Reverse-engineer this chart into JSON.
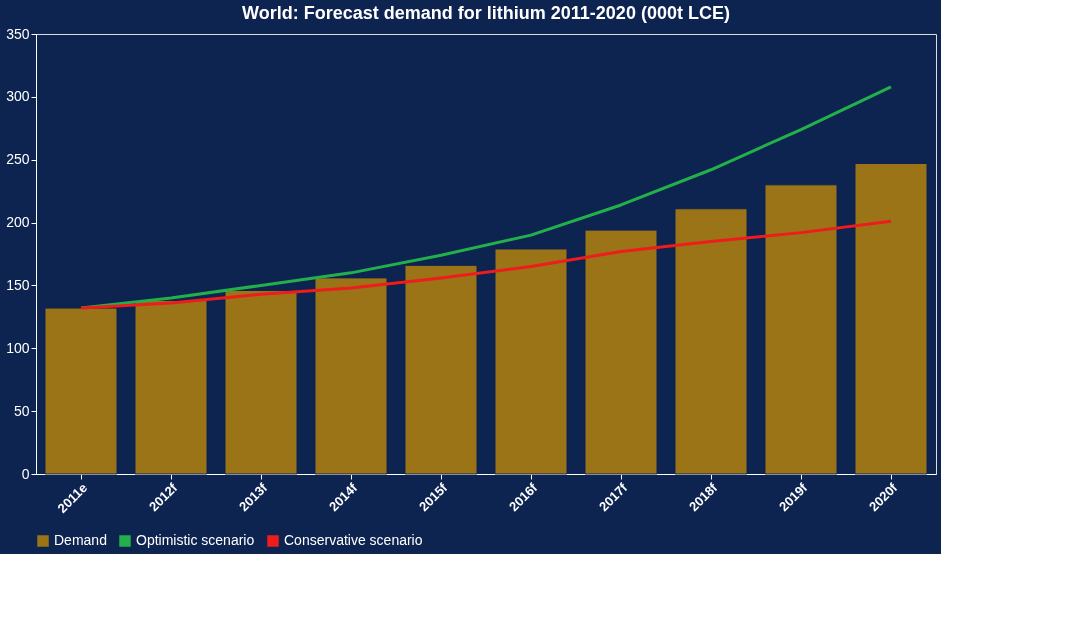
{
  "chart_data": {
    "type": "bar",
    "title": "World: Forecast demand for lithium 2011-2020 (000t LCE)",
    "categories": [
      "2011e",
      "2012f",
      "2013f",
      "2014f",
      "2015f",
      "2016f",
      "2017f",
      "2018f",
      "2019f",
      "2020f"
    ],
    "series": [
      {
        "name": "Demand",
        "color": "#9a7416",
        "values": [
          132,
          138,
          146,
          156,
          166,
          179,
          194,
          211,
          230,
          247
        ]
      },
      {
        "name": "Optimistic scenario",
        "type": "line",
        "color": "#22b04b",
        "values": [
          132,
          140,
          150,
          160,
          174,
          190,
          214,
          242,
          274,
          308
        ]
      },
      {
        "name": "Conservative scenario",
        "type": "line",
        "color": "#ee1c1c",
        "values": [
          132,
          136,
          143,
          148,
          156,
          165,
          177,
          185,
          192,
          201
        ]
      }
    ],
    "ylim": [
      0,
      350
    ],
    "yticks": [
      0,
      50,
      100,
      150,
      200,
      250,
      300,
      350
    ],
    "grid": false,
    "legend": "bottom"
  }
}
